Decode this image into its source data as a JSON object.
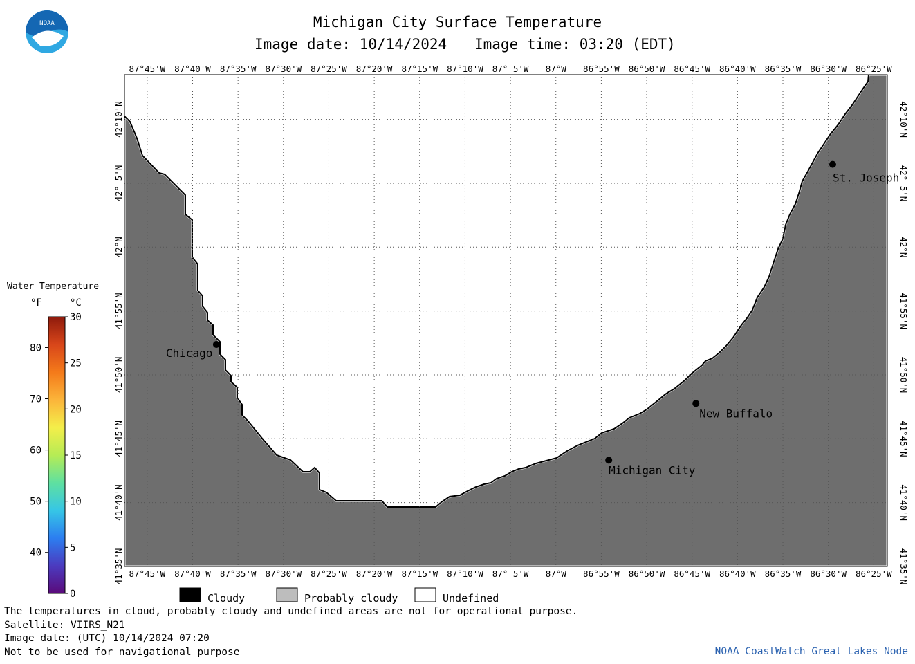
{
  "header": {
    "title": "Michigan City Surface Temperature",
    "date_label": "Image date: 10/14/2024",
    "time_label": "Image time: 03:20 (EDT)"
  },
  "logo": {
    "text": "NOAA",
    "icon": "noaa-logo-icon",
    "colors": {
      "blue": "#1467b3",
      "light_blue": "#2fa8e2"
    }
  },
  "map": {
    "water_color": "#6e6e6e",
    "undefined_color": "#ffffff",
    "lon_labels": [
      "87°45'W",
      "87°40'W",
      "87°35'W",
      "87°30'W",
      "87°25'W",
      "87°20'W",
      "87°15'W",
      "87°10'W",
      "87° 5'W",
      "87°W",
      "86°55'W",
      "86°50'W",
      "86°45'W",
      "86°40'W",
      "86°35'W",
      "86°30'W",
      "86°25'W"
    ],
    "lat_labels": [
      "42°10'N",
      "42° 5'N",
      "42°N",
      "41°55'N",
      "41°50'N",
      "41°45'N",
      "41°40'N",
      "41°35'N"
    ],
    "cities": [
      {
        "name": "Chicago",
        "lat": 41.873,
        "lon": -87.623
      },
      {
        "name": "Michigan City",
        "lat": 41.722,
        "lon": -86.903
      },
      {
        "name": "New Buffalo",
        "lat": 41.796,
        "lon": -86.743
      },
      {
        "name": "St. Joseph",
        "lat": 42.108,
        "lon": -86.492
      }
    ]
  },
  "legend": {
    "title": "Water Temperature",
    "f_unit": "°F",
    "c_unit": "°C",
    "f_ticks": [
      "80",
      "70",
      "60",
      "50",
      "40"
    ],
    "c_ticks": [
      "30",
      "25",
      "20",
      "15",
      "10",
      "5",
      "0"
    ],
    "c_range": [
      0,
      30
    ],
    "colors": [
      "#5a0a7a",
      "#4b3bbf",
      "#2c7ef0",
      "#36c6e6",
      "#5fe0a0",
      "#b6ec55",
      "#f4ee4a",
      "#fbb43a",
      "#f47a1a",
      "#d8461a",
      "#8e1a0c"
    ]
  },
  "key": {
    "items": [
      {
        "label": "Cloudy",
        "color": "#000000"
      },
      {
        "label": "Probably cloudy",
        "color": "#bdbdbd"
      },
      {
        "label": "Undefined",
        "color": "#ffffff"
      }
    ]
  },
  "footer": {
    "line1": "The temperatures in cloud, probably cloudy and undefined areas are not for operational purpose.",
    "line2": "Satellite: VIIRS_N21",
    "line3": "Image date: (UTC) 10/14/2024  07:20",
    "line4": "Not to be used for navigational purpose",
    "credit": "NOAA CoastWatch Great Lakes Node"
  }
}
